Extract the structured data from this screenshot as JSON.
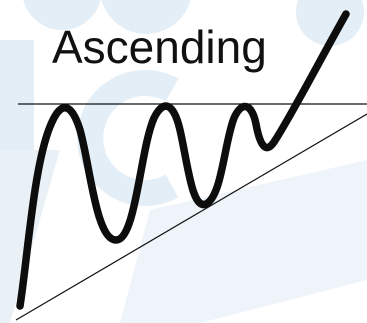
{
  "diagram": {
    "title": "Ascending",
    "pattern": "ascending-triangle",
    "colors": {
      "background": "#ffffff",
      "watermark": "#dce9f2",
      "watermark_light": "#eaf2f8",
      "ink": "#0d0d0d",
      "line": "#111111"
    }
  }
}
